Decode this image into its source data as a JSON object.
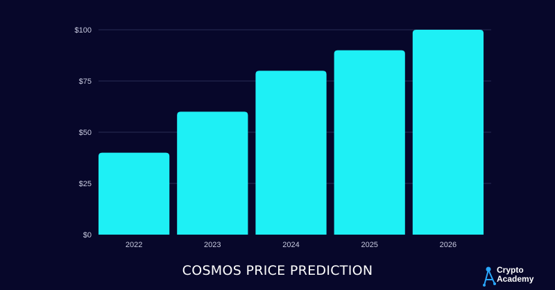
{
  "chart_data": {
    "type": "bar",
    "title": "COSMOS PRICE PREDICTION",
    "categories": [
      "2022",
      "2023",
      "2024",
      "2025",
      "2026"
    ],
    "values": [
      40,
      60,
      80,
      90,
      100
    ],
    "ylim": [
      0,
      100
    ],
    "yticks": [
      0,
      25,
      50,
      75,
      100
    ],
    "ytick_labels": [
      "$0",
      "$25",
      "$50",
      "$75",
      "$100"
    ],
    "bar_color": "#1ef0f5",
    "grid": true
  },
  "logo": {
    "line1": "Crypto",
    "line2": "Academy",
    "color": "#2aa8ff"
  }
}
